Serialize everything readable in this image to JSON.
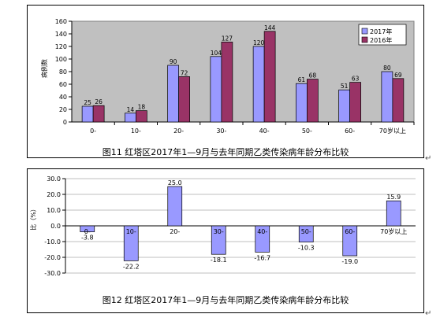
{
  "figure1": {
    "caption": "图11 红塔区2017年1—9月与去年同期乙类传染病年龄分布比较",
    "chart_data": {
      "type": "bar",
      "ylabel": "病例数",
      "ylim": [
        0,
        160
      ],
      "yticks": [
        0,
        20,
        40,
        60,
        80,
        100,
        120,
        140,
        160
      ],
      "categories": [
        "0-",
        "10-",
        "20-",
        "30-",
        "40-",
        "50-",
        "60-",
        "70岁以上"
      ],
      "series": [
        {
          "name": "2017年",
          "values": [
            25,
            14,
            90,
            104,
            120,
            61,
            51,
            80
          ],
          "color": "#9999ff"
        },
        {
          "name": "2016年",
          "values": [
            26,
            18,
            72,
            127,
            144,
            68,
            63,
            69
          ],
          "color": "#993366"
        }
      ],
      "plot_background": "#c0c0c0",
      "grid": false,
      "legend_position": "top-right"
    }
  },
  "figure2": {
    "caption": "图12 红塔区2017年1—9月与去年同期乙类传染病年龄分布比较",
    "chart_data": {
      "type": "bar",
      "ylabel": "比（%）",
      "ylim": [
        -30,
        30
      ],
      "yticks": [
        "30.0",
        "20.0",
        "10.0",
        "0.0",
        "-10.0",
        "-20.0",
        "-30.0"
      ],
      "ytick_values": [
        30,
        20,
        10,
        0,
        -10,
        -20,
        -30
      ],
      "categories": [
        "0-",
        "10-",
        "20-",
        "30-",
        "40-",
        "50-",
        "60-",
        "70岁以上"
      ],
      "values": [
        -3.8,
        -22.2,
        25.0,
        -18.1,
        -16.7,
        -10.3,
        -19.0,
        15.9
      ],
      "value_labels": [
        "-3.8",
        "-22.2",
        "25.0",
        "-18.1",
        "-16.7",
        "-10.3",
        "-19.0",
        "15.9"
      ],
      "color": "#9999ff",
      "grid": true
    }
  },
  "return_mark": "↵"
}
